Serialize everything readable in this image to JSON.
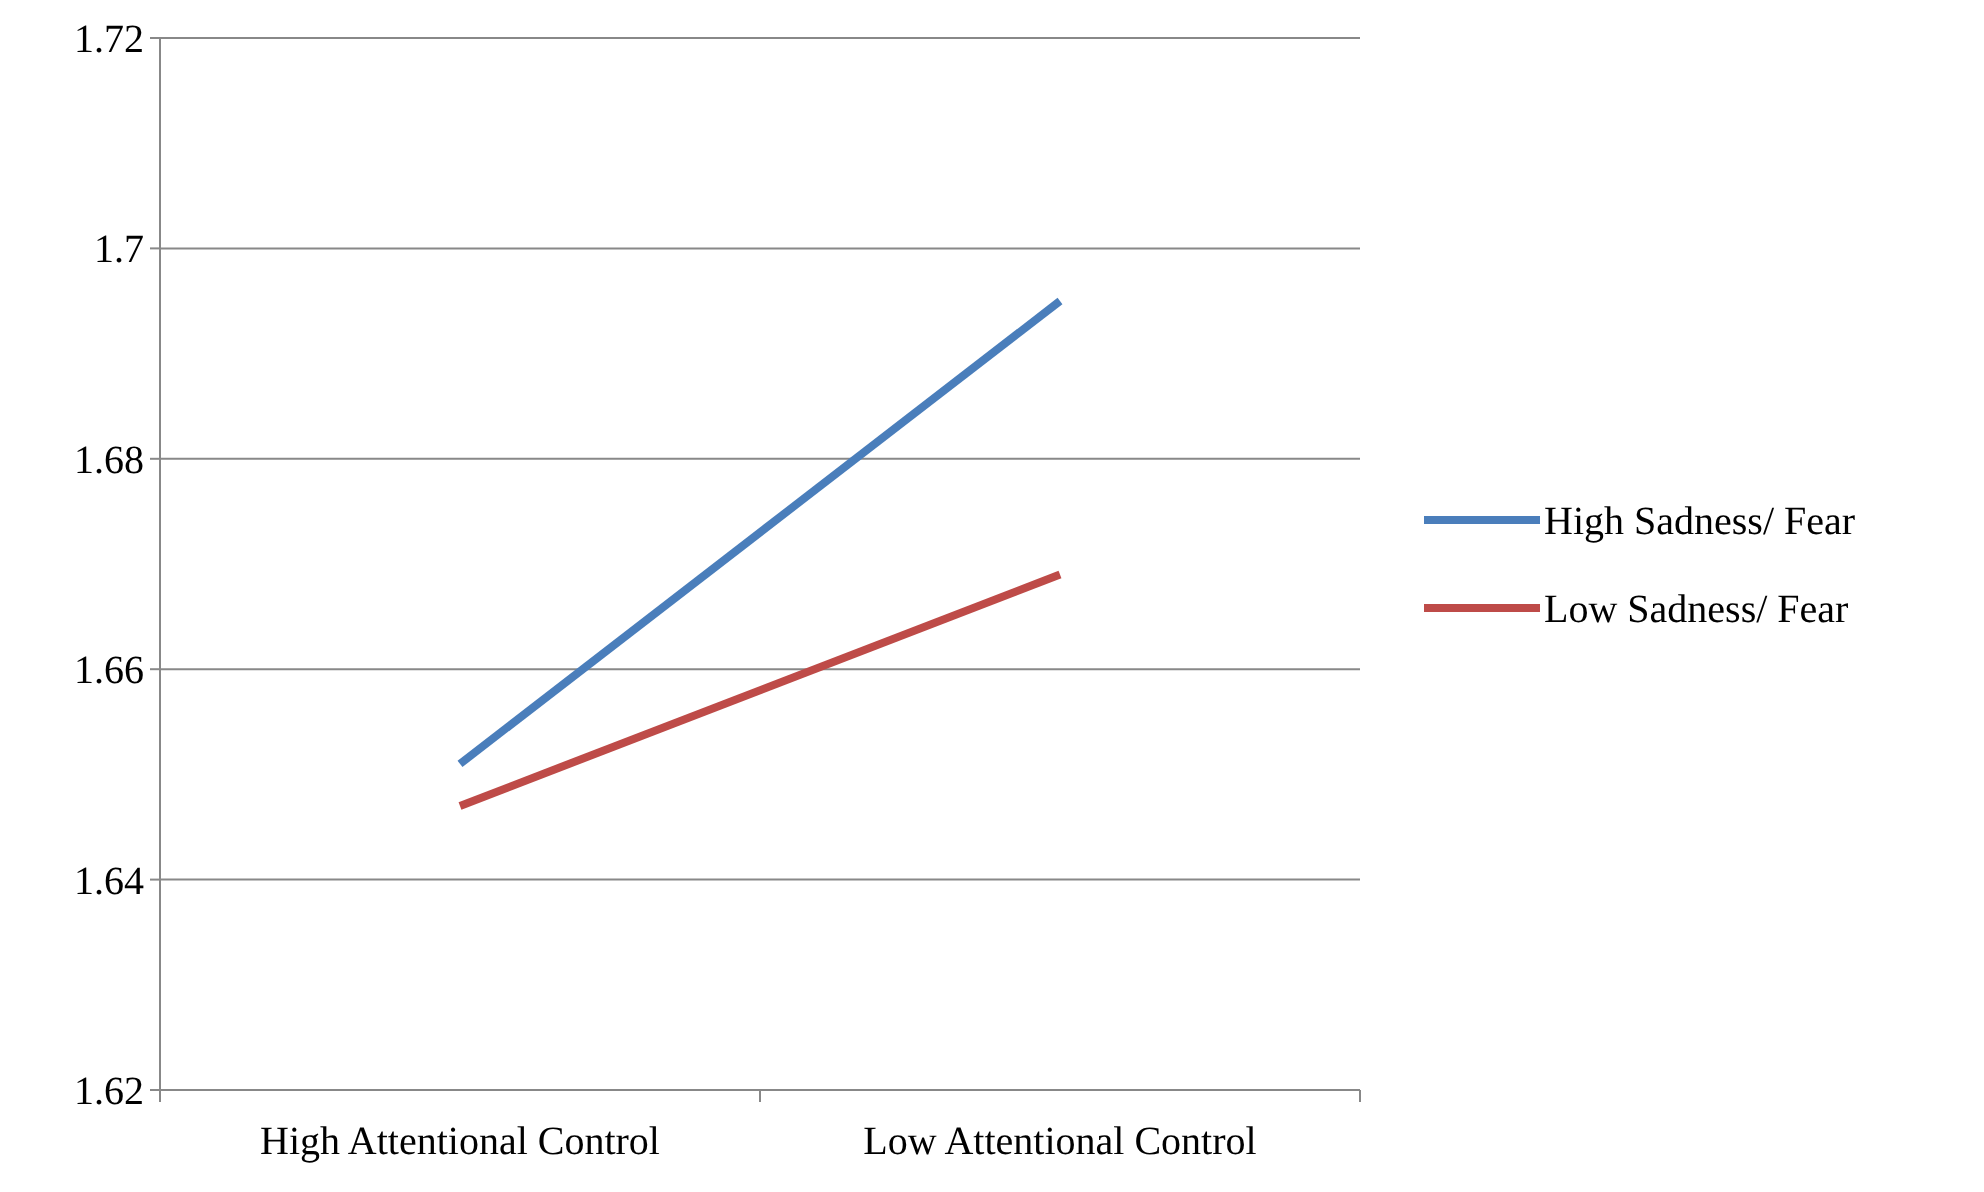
{
  "chart_data": {
    "type": "line",
    "categories": [
      "High Attentional Control",
      "Low Attentional Control"
    ],
    "series": [
      {
        "name": "High Sadness/ Fear",
        "color": "#4a7ebb",
        "values": [
          1.651,
          1.695
        ]
      },
      {
        "name": "Low Sadness/ Fear",
        "color": "#be4b48",
        "values": [
          1.647,
          1.669
        ]
      }
    ],
    "ylim": [
      1.62,
      1.72
    ],
    "yticks": [
      1.62,
      1.64,
      1.66,
      1.68,
      1.7,
      1.72
    ],
    "grid": "y",
    "legend": "right",
    "marker": "none",
    "line_style": "solid"
  }
}
